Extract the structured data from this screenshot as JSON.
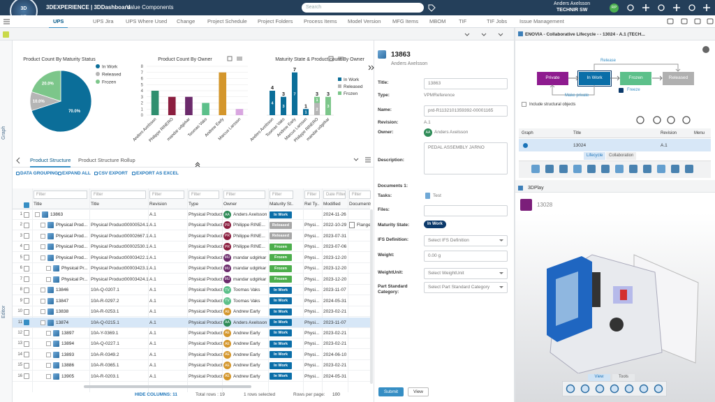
{
  "topbar": {
    "compass": "3D",
    "compass_version": "V.R",
    "brand": "3DEXPERIENCE | 3DDashboard",
    "dashboard": "Value Components",
    "search": "Search",
    "user": "Anders Axelsson",
    "tenant": "TECHNIR SW",
    "avatar": "RP"
  },
  "tabs": [
    "UPS",
    "UPS Jira",
    "UPS Where Used",
    "Change",
    "Project Schedule",
    "Project Folders",
    "Process Items",
    "Model Version",
    "MFG Items",
    "MBOM",
    "TIF",
    "TIF Jobs",
    "Issue Management"
  ],
  "active_tab": 0,
  "side_labels": [
    "Graph",
    "Editor"
  ],
  "chart_data": [
    {
      "type": "pie",
      "title": "Product Count By Maturity Status",
      "categories": [
        "In Work",
        "Released",
        "Frozen"
      ],
      "values": [
        70,
        10,
        20
      ],
      "value_labels": [
        "70.0%",
        "10.0%",
        "20.0%"
      ],
      "colors": [
        "#0b6e99",
        "#b5b5b5",
        "#7cc68a"
      ],
      "legend": "top-right"
    },
    {
      "type": "bar",
      "title": "Product Count By Owner",
      "categories": [
        "Anders Axelsson",
        "Philippe RINERO",
        "mandar udgirkar",
        "Toomas Vaks",
        "Andrew Early",
        "Marcus Larsson"
      ],
      "values": [
        4,
        3,
        3,
        2,
        7,
        1
      ],
      "colors": [
        "#2f8f6f",
        "#8b1e3f",
        "#6b2a6b",
        "#5cc08a",
        "#d4962b",
        "#d9a6e0"
      ],
      "ylim": [
        0,
        8
      ],
      "yticks": [
        0,
        1,
        2,
        3,
        4,
        5,
        6,
        7,
        8
      ],
      "grid": true
    },
    {
      "type": "stacked_bar",
      "title": "Maturity State & Product count By Owner",
      "categories": [
        "Anders Axelsson",
        "Toomas Vaks",
        "Andrew Early",
        "Marcus Larsson",
        "Philippe RINERO",
        "mandar udgirkar"
      ],
      "series": [
        {
          "name": "In Work",
          "color": "#0b6e99",
          "values": [
            4,
            3,
            7,
            1,
            0,
            0
          ]
        },
        {
          "name": "Released",
          "color": "#b5b5b5",
          "values": [
            0,
            0,
            0,
            0,
            2,
            0
          ]
        },
        {
          "name": "Frozen",
          "color": "#7cc68a",
          "values": [
            0,
            0,
            0,
            0,
            1,
            3
          ]
        }
      ],
      "total_labels": [
        "4",
        "3",
        "7",
        "1",
        "3",
        "3"
      ],
      "ylim": [
        0,
        8
      ],
      "legend": "right"
    }
  ],
  "structure": {
    "tabs": [
      "Product Structure",
      "Product Structure Rollup"
    ],
    "active_tab": 0,
    "actions": [
      "DATA GROUPING",
      "EXPAND ALL",
      "CSV EXPORT",
      "EXPORT AS EXCEL"
    ]
  },
  "table": {
    "filter": "Filter",
    "date_filter": "Date Filter",
    "headers": [
      "Title",
      "Title",
      "Revision",
      "Type",
      "Owner",
      "Maturity St...",
      "Rel Ty...",
      "Modified",
      "Documents"
    ],
    "rows": [
      [
        "1",
        "13863",
        null,
        "A.1",
        "Physical Product",
        "AA",
        "Anders Axelsson",
        "In Work",
        null,
        "2024-11-26",
        null
      ],
      [
        "2",
        "Physical Prod...",
        "Physical Product00000524.1",
        "A.1",
        "Physical Product",
        "PR",
        "Philippe RINE...",
        "Released",
        "Physi...",
        "2022-10-29",
        "Flange"
      ],
      [
        "3",
        "Physical Prod...",
        "Physical Product00002667.1",
        "A.1",
        "Physical Product",
        "PR",
        "Philippe RINE...",
        "Released",
        "Physi...",
        "2023-07-31",
        null
      ],
      [
        "4",
        "Physical Prod...",
        "Physical Product00002530.1",
        "A.1",
        "Physical Product",
        "PR",
        "Philippe RINE...",
        "Frozen",
        "Physi...",
        "2023-07-06",
        null
      ],
      [
        "5",
        "Physical Prod...",
        "Physical Product00003422.1",
        "A.1",
        "Physical Product",
        "MU",
        "mandar udgirkar",
        "Frozen",
        "Physi...",
        "2023-12-20",
        null
      ],
      [
        "6",
        "Physical Pr...",
        "Physical Product00003423.1",
        "A.1",
        "Physical Product",
        "MU",
        "mandar udgirkar",
        "Frozen",
        "Physi...",
        "2023-12-20",
        null
      ],
      [
        "7",
        "Physical Pr...",
        "Physical Product00003424.1",
        "A.1",
        "Physical Product",
        "MU",
        "mandar udgirkar",
        "Frozen",
        "Physi...",
        "2023-12-20",
        null
      ],
      [
        "8",
        "13846",
        "10A-Q-0207.1",
        "A.1",
        "Physical Product",
        "TV",
        "Toomas Vaks",
        "In Work",
        "Physi...",
        "2023-11-07",
        null
      ],
      [
        "9",
        "13847",
        "10A-R-0297.2",
        "A.1",
        "Physical Product",
        "TV",
        "Toomas Vaks",
        "In Work",
        "Physi...",
        "2024-05-31",
        null
      ],
      [
        "10",
        "13838",
        "10A-R-0253.1",
        "A.1",
        "Physical Product",
        "AE",
        "Andrew Early",
        "In Work",
        "Physi...",
        "2023-02-21",
        null
      ],
      [
        "11",
        "13874",
        "10A-Q-0215.1",
        "A.1",
        "Physical Product",
        "AA",
        "Anders Axelsson",
        "In Work",
        "Physi...",
        "2023-11-07",
        null
      ],
      [
        "12",
        "13897",
        "10A-Y-0369.1",
        "A.1",
        "Physical Product",
        "AE",
        "Andrew Early",
        "In Work",
        "Physi...",
        "2023-02-21",
        null
      ],
      [
        "13",
        "13894",
        "10A-Q-0227.1",
        "A.1",
        "Physical Product",
        "AE",
        "Andrew Early",
        "In Work",
        "Physi...",
        "2023-02-21",
        null
      ],
      [
        "14",
        "13893",
        "10A-R-0349.2",
        "A.1",
        "Physical Product",
        "AE",
        "Andrew Early",
        "In Work",
        "Physi...",
        "2024-06-10",
        null
      ],
      [
        "15",
        "13886",
        "10A-R-0365.1",
        "A.1",
        "Physical Product",
        "AE",
        "Andrew Early",
        "In Work",
        "Physi...",
        "2023-02-21",
        null
      ],
      [
        "16",
        "13905",
        "10A-R-0203.1",
        "A.1",
        "Physical Product",
        "AE",
        "Andrew Early",
        "In Work",
        "Physi...",
        "2024-05-31",
        null
      ]
    ],
    "levels": [
      0,
      1,
      1,
      1,
      1,
      2,
      2,
      1,
      1,
      1,
      1,
      2,
      2,
      2,
      2,
      2
    ],
    "selected_row": 10,
    "owner_colors": {
      "AA": "#2e8b57",
      "PR": "#8b1e3f",
      "MU": "#6b2a6b",
      "TV": "#5cc08a",
      "AE": "#d4962b"
    },
    "state_colors": {
      "In Work": "#0a6ea8",
      "Released": "#a6a6a6",
      "Frozen": "#4cae4c"
    }
  },
  "footer": {
    "hide_columns": "HIDE COLUMNS: 11",
    "total_rows": "Total rows : 19",
    "selected": "1 rows selected",
    "rows_per_page": "Rows per page:",
    "page_size": "100"
  },
  "form": {
    "title": "13863",
    "owner_name": "Anders Axelsson",
    "fields": [
      {
        "label": "Title:",
        "value": "13863",
        "kind": "input"
      },
      {
        "label": "Type:",
        "value": "VPMReference",
        "kind": "text"
      },
      {
        "label": "Name:",
        "value": "prd-R1132101359392-00001165",
        "kind": "input"
      },
      {
        "label": "Revision:",
        "value": "A.1",
        "kind": "text"
      },
      {
        "label": "Owner:",
        "value": "Anders Axelsson",
        "initials": "AA",
        "kind": "owner"
      },
      {
        "label": "Description:",
        "value": "PEDAL ASSEMBLY JARNO",
        "kind": "textarea"
      },
      {
        "label": "Documents 1:",
        "kind": "text"
      },
      {
        "label": "Tasks:",
        "value": "Test",
        "kind": "task"
      },
      {
        "label": "Files:",
        "kind": "input"
      },
      {
        "label": "Maturity State:",
        "value": "In Work",
        "kind": "badge"
      },
      {
        "label": "IFS Definition:",
        "value": "Select IFS Definition",
        "kind": "select"
      },
      {
        "label": "Weight:",
        "value": "0.00 g",
        "kind": "input"
      },
      {
        "label": "WeightUnit:",
        "value": "Select WeightUnit",
        "kind": "select"
      },
      {
        "label": "Part Standard Category:",
        "value": "Select Part Standard Category",
        "kind": "select"
      }
    ],
    "buttons": [
      "Submit",
      "View"
    ]
  },
  "lifecycle": {
    "title": "ENOVIA - Collaborative Lifecycle - - 13024 - A.1 (TECH...",
    "states": [
      "Private",
      "In Work",
      "Frozen",
      "Released"
    ],
    "state_colors": [
      "#8e1b8f",
      "#0a6ea8",
      "#5cc08a",
      "#b0b0b0"
    ],
    "current": 1,
    "transitions": [
      "Release",
      "Make private",
      "Freeze"
    ],
    "include": "Include structural objects",
    "headers": [
      "Graph",
      "Title",
      "Revision",
      "Menu"
    ],
    "row": {
      "title": "13024",
      "revision": "A.1"
    },
    "tabs": [
      "Lifecycle",
      "Collaboration"
    ],
    "active_tab": 0
  },
  "play": {
    "title": "3DPlay",
    "object": "13028",
    "tabs": [
      "View",
      "Tools"
    ],
    "active_tab": 0
  }
}
